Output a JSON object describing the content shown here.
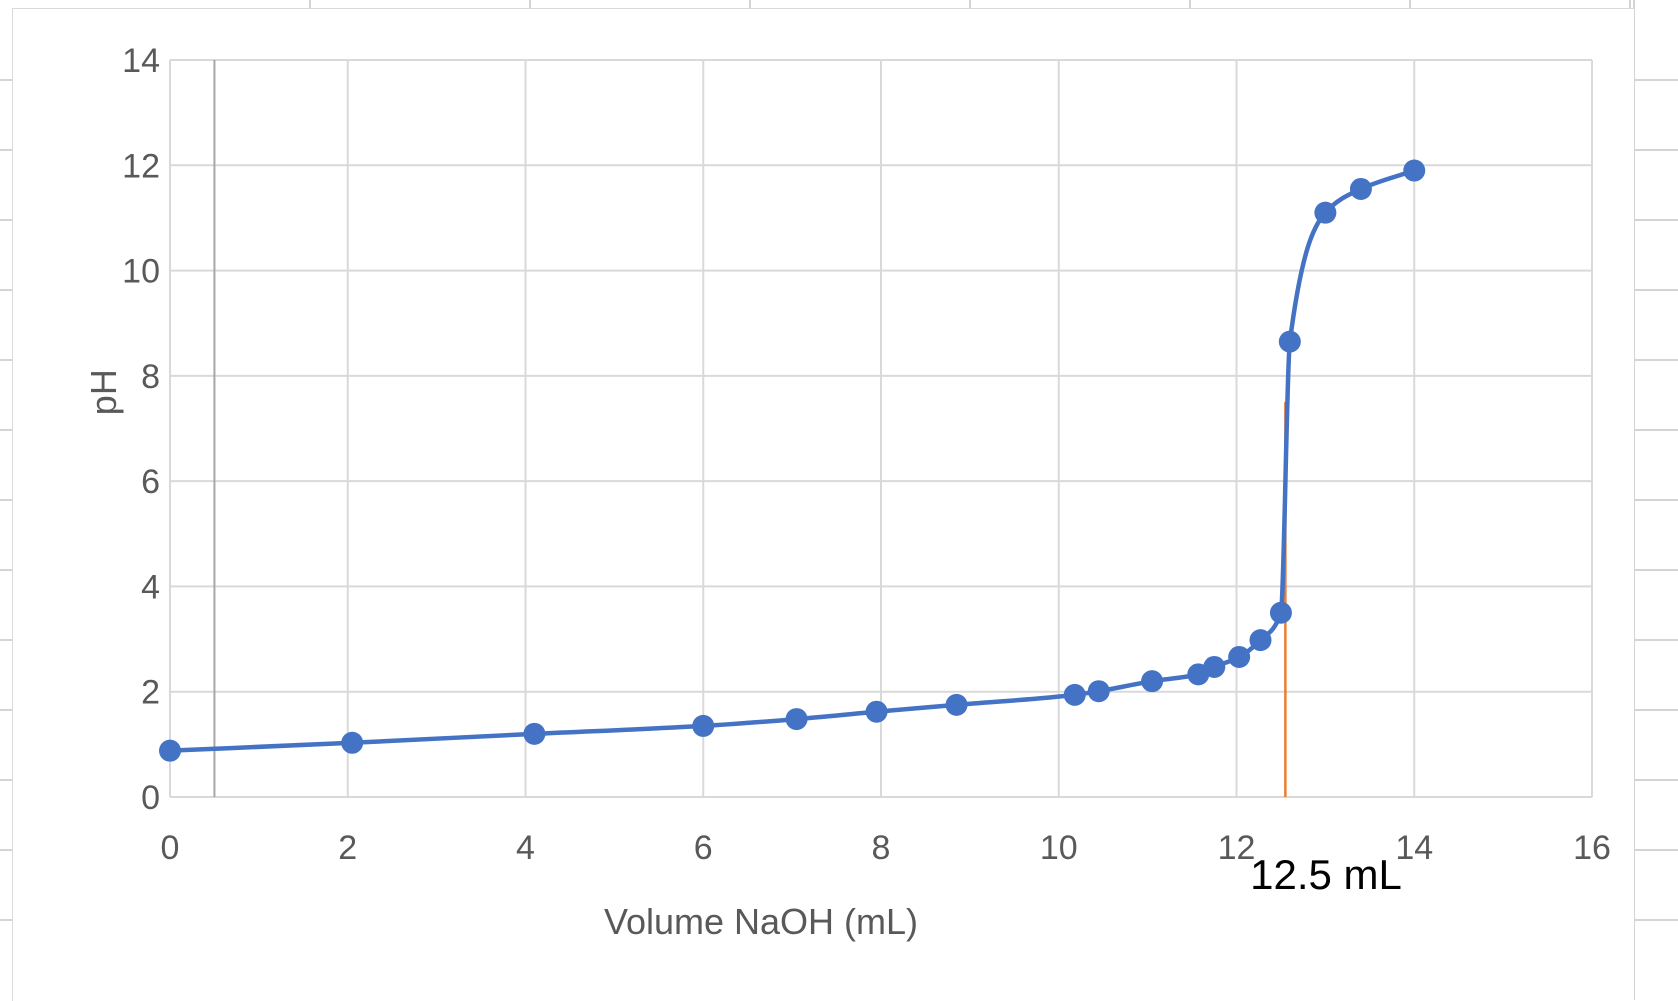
{
  "chart_data": {
    "type": "scatter",
    "xlabel": "Volume NaOH (mL)",
    "ylabel": "pH",
    "xlim": [
      0,
      16
    ],
    "ylim": [
      0,
      14
    ],
    "xticks": [
      "0",
      "2",
      "4",
      "6",
      "8",
      "10",
      "12",
      "14",
      "16"
    ],
    "yticks": [
      "0",
      "2",
      "4",
      "6",
      "8",
      "10",
      "12",
      "14"
    ],
    "grid": true,
    "legend": "none",
    "series": [
      {
        "color": "#4472c4",
        "style": "smooth-line-with-markers",
        "points": [
          [
            0,
            0.88
          ],
          [
            2.05,
            1.03
          ],
          [
            4.1,
            1.2
          ],
          [
            6.0,
            1.35
          ],
          [
            7.05,
            1.48
          ],
          [
            7.95,
            1.62
          ],
          [
            8.85,
            1.75
          ],
          [
            10.18,
            1.94
          ],
          [
            10.45,
            2.01
          ],
          [
            11.05,
            2.2
          ],
          [
            11.57,
            2.33
          ],
          [
            11.75,
            2.47
          ],
          [
            12.03,
            2.66
          ],
          [
            12.27,
            2.98
          ],
          [
            12.5,
            3.5
          ],
          [
            12.6,
            8.65
          ],
          [
            13.0,
            11.1
          ],
          [
            13.4,
            11.55
          ],
          [
            14.0,
            11.9
          ]
        ]
      }
    ],
    "reference_line": {
      "x": 12.55,
      "y_from": 0,
      "y_to": 7.5,
      "color": "#ed7d31"
    },
    "vertical_gridline_extra": {
      "x": 0.5,
      "color": "#a6a6a6"
    },
    "annotations": [
      {
        "text": "12.5 mL",
        "x": 13.0,
        "y": -1.5
      }
    ]
  },
  "colors": {
    "series": "#4472c4",
    "reference": "#ed7d31",
    "grid": "#d9d9d9",
    "text": "#595959"
  }
}
